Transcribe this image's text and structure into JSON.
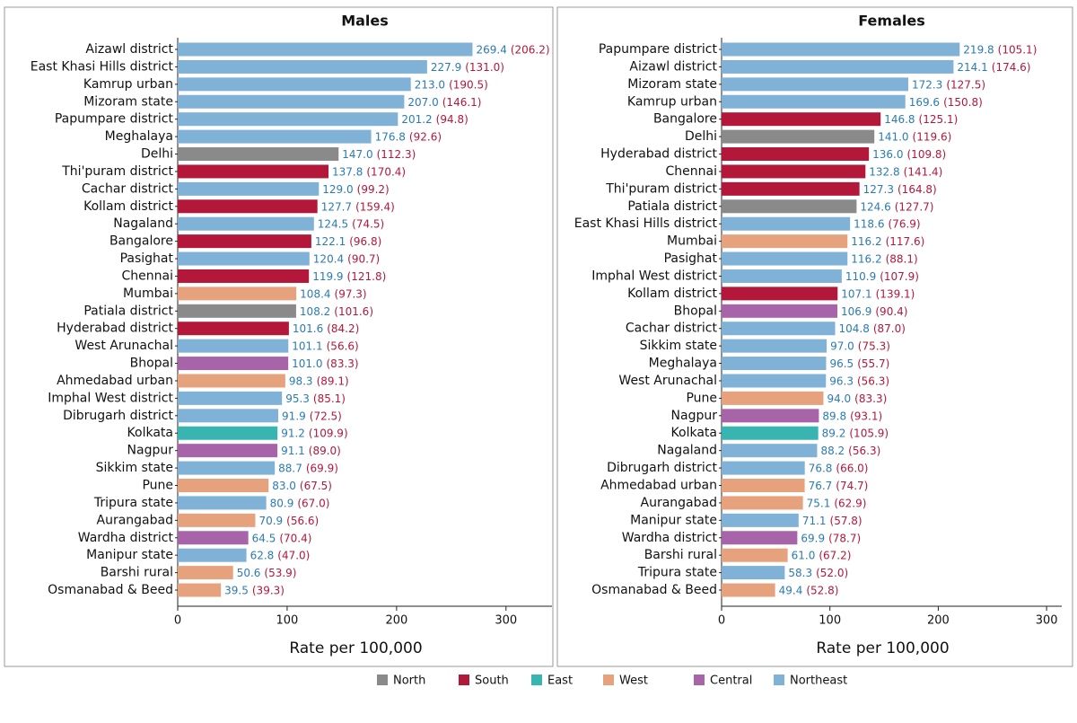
{
  "chart_data": [
    {
      "type": "bar",
      "title": "Males",
      "xlabel": "Rate per 100,000",
      "categories": [
        "Aizawl district",
        "East Khasi Hills district",
        "Kamrup urban",
        "Mizoram state",
        "Papumpare district",
        "Meghalaya",
        "Delhi",
        "Thi'puram district",
        "Cachar district",
        "Kollam district",
        "Nagaland",
        "Bangalore",
        "Pasighat",
        "Chennai",
        "Mumbai",
        "Patiala district",
        "Hyderabad district",
        "West Arunachal",
        "Bhopal",
        "Ahmedabad urban",
        "Imphal West district",
        "Dibrugarh district",
        "Kolkata",
        "Nagpur",
        "Sikkim state",
        "Pune",
        "Tripura state",
        "Aurangabad",
        "Wardha district",
        "Manipur state",
        "Barshi rural",
        "Osmanabad & Beed"
      ],
      "values": [
        269.4,
        227.9,
        213.0,
        207.0,
        201.2,
        176.8,
        147.0,
        137.8,
        129.0,
        127.7,
        124.5,
        122.1,
        120.4,
        119.9,
        108.4,
        108.2,
        101.6,
        101.1,
        101.0,
        98.3,
        95.3,
        91.9,
        91.2,
        91.1,
        88.7,
        83.0,
        80.9,
        70.9,
        64.5,
        62.8,
        50.6,
        39.5
      ],
      "value_labels": [
        "269.4",
        "227.9",
        "213.0",
        "207.0",
        "201.2",
        "176.8",
        "147.0",
        "137.8",
        "129.0",
        "127.7",
        "124.5",
        "122.1",
        "120.4",
        "119.9",
        "108.4",
        "108.2",
        "101.6",
        "101.1",
        "101.0",
        "98.3",
        "95.3",
        "91.9",
        "91.2",
        "91.1",
        "88.7",
        "83.0",
        "80.9",
        "70.9",
        "64.5",
        "62.8",
        "50.6",
        "39.5"
      ],
      "secondary_values": [
        206.2,
        131.0,
        190.5,
        146.1,
        94.8,
        92.6,
        112.3,
        170.4,
        99.2,
        159.4,
        74.5,
        96.8,
        90.7,
        121.8,
        97.3,
        101.6,
        84.2,
        56.6,
        83.3,
        89.1,
        85.1,
        72.5,
        109.9,
        89.0,
        69.9,
        67.5,
        67.0,
        56.6,
        70.4,
        47.0,
        53.9,
        39.3
      ],
      "secondary_value_labels": [
        "(206.2)",
        "(131.0)",
        "(190.5)",
        "(146.1)",
        "(94.8)",
        "(92.6)",
        "(112.3)",
        "(170.4)",
        "(99.2)",
        "(159.4)",
        "(74.5)",
        "(96.8)",
        "(90.7)",
        "(121.8)",
        "(97.3)",
        "(101.6)",
        "(84.2)",
        "(56.6)",
        "(83.3)",
        "(89.1)",
        "(85.1)",
        "(72.5)",
        "(109.9)",
        "(89.0)",
        "(69.9)",
        "(67.5)",
        "(67.0)",
        "(56.6)",
        "(70.4)",
        "(47.0)",
        "(53.9)",
        "(39.3)"
      ],
      "colors": [
        "#80b1d6",
        "#80b1d6",
        "#80b1d6",
        "#80b1d6",
        "#80b1d6",
        "#80b1d6",
        "#8a8a8a",
        "#b3183a",
        "#80b1d6",
        "#b3183a",
        "#80b1d6",
        "#b3183a",
        "#80b1d6",
        "#b3183a",
        "#e6a17d",
        "#8a8a8a",
        "#b3183a",
        "#80b1d6",
        "#a864a8",
        "#e6a17d",
        "#80b1d6",
        "#80b1d6",
        "#38b5b0",
        "#a864a8",
        "#80b1d6",
        "#e6a17d",
        "#80b1d6",
        "#e6a17d",
        "#a864a8",
        "#80b1d6",
        "#e6a17d",
        "#e6a17d"
      ],
      "xlim": [
        0,
        342
      ],
      "xticks": [
        0,
        100,
        200,
        300
      ]
    },
    {
      "type": "bar",
      "title": "Females",
      "xlabel": "Rate per 100,000",
      "categories": [
        "Papumpare district",
        "Aizawl district",
        "Mizoram state",
        "Kamrup urban",
        "Bangalore",
        "Delhi",
        "Hyderabad district",
        "Chennai",
        "Thi'puram district",
        "Patiala district",
        "East Khasi Hills district",
        "Mumbai",
        "Pasighat",
        "Imphal West district",
        "Kollam district",
        "Bhopal",
        "Cachar district",
        "Sikkim state",
        "Meghalaya",
        "West Arunachal",
        "Pune",
        "Nagpur",
        "Kolkata",
        "Nagaland",
        "Dibrugarh district",
        "Ahmedabad urban",
        "Aurangabad",
        "Manipur state",
        "Wardha district",
        "Barshi rural",
        "Tripura state",
        "Osmanabad & Beed"
      ],
      "values": [
        219.8,
        214.1,
        172.3,
        169.6,
        146.8,
        141.0,
        136.0,
        132.8,
        127.3,
        124.6,
        118.6,
        116.2,
        116.2,
        110.9,
        107.1,
        106.9,
        104.8,
        97.0,
        96.5,
        96.3,
        94.0,
        89.8,
        89.2,
        88.2,
        76.8,
        76.7,
        75.1,
        71.1,
        69.9,
        61.0,
        58.3,
        49.4
      ],
      "value_labels": [
        "219.8",
        "214.1",
        "172.3",
        "169.6",
        "146.8",
        "141.0",
        "136.0",
        "132.8",
        "127.3",
        "124.6",
        "118.6",
        "116.2",
        "116.2",
        "110.9",
        "107.1",
        "106.9",
        "104.8",
        "97.0",
        "96.5",
        "96.3",
        "94.0",
        "89.8",
        "89.2",
        "88.2",
        "76.8",
        "76.7",
        "75.1",
        "71.1",
        "69.9",
        "61.0",
        "58.3",
        "49.4"
      ],
      "secondary_values": [
        105.1,
        174.6,
        127.5,
        150.8,
        125.1,
        119.6,
        109.8,
        141.4,
        164.8,
        127.7,
        76.9,
        117.6,
        88.1,
        107.9,
        139.1,
        90.4,
        87.0,
        75.3,
        55.7,
        56.3,
        83.3,
        93.1,
        105.9,
        56.3,
        66.0,
        74.7,
        62.9,
        57.8,
        78.7,
        67.2,
        52.0,
        52.8
      ],
      "secondary_value_labels": [
        "(105.1)",
        "(174.6)",
        "(127.5)",
        "(150.8)",
        "(125.1)",
        "(119.6)",
        "(109.8)",
        "(141.4)",
        "(164.8)",
        "(127.7)",
        "(76.9)",
        "(117.6)",
        "(88.1)",
        "(107.9)",
        "(139.1)",
        "(90.4)",
        "(87.0)",
        "(75.3)",
        "(55.7)",
        "(56.3)",
        "(83.3)",
        "(93.1)",
        "(105.9)",
        "(56.3)",
        "(66.0)",
        "(74.7)",
        "(62.9)",
        "(57.8)",
        "(78.7)",
        "(67.2)",
        "(52.0)",
        "(52.8)"
      ],
      "colors": [
        "#80b1d6",
        "#80b1d6",
        "#80b1d6",
        "#80b1d6",
        "#b3183a",
        "#8a8a8a",
        "#b3183a",
        "#b3183a",
        "#b3183a",
        "#8a8a8a",
        "#80b1d6",
        "#e6a17d",
        "#80b1d6",
        "#80b1d6",
        "#b3183a",
        "#a864a8",
        "#80b1d6",
        "#80b1d6",
        "#80b1d6",
        "#80b1d6",
        "#e6a17d",
        "#a864a8",
        "#38b5b0",
        "#80b1d6",
        "#80b1d6",
        "#e6a17d",
        "#e6a17d",
        "#80b1d6",
        "#a864a8",
        "#e6a17d",
        "#80b1d6",
        "#e6a17d"
      ],
      "xlim": [
        0,
        314
      ],
      "xticks": [
        0,
        100,
        200,
        300
      ]
    }
  ],
  "legend": [
    {
      "name": "North",
      "color": "#8a8a8a"
    },
    {
      "name": "South",
      "color": "#b3183a"
    },
    {
      "name": "East",
      "color": "#38b5b0"
    },
    {
      "name": "West",
      "color": "#e6a17d"
    },
    {
      "name": "Central",
      "color": "#a864a8"
    },
    {
      "name": "Northeast",
      "color": "#80b1d6"
    }
  ]
}
